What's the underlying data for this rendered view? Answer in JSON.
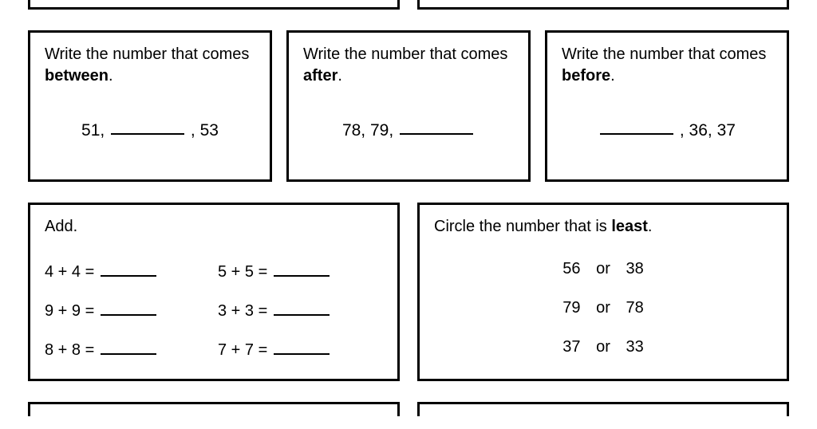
{
  "colors": {
    "border": "#000000",
    "bg": "#ffffff",
    "text": "#000000"
  },
  "font": {
    "family": "Comic Sans MS",
    "size_pt": 15
  },
  "top_row": [
    {
      "prompt_prefix": "Write the number that comes ",
      "bold_word": "between",
      "suffix": ".",
      "sequence": {
        "before": "51,",
        "after": ", 53"
      }
    },
    {
      "prompt_prefix": "Write the number that comes ",
      "bold_word": "after",
      "suffix": ".",
      "sequence": {
        "before": "78, 79,",
        "after": ""
      }
    },
    {
      "prompt_prefix": "Write the number that comes ",
      "bold_word": "before",
      "suffix": ".",
      "sequence": {
        "before": "",
        "after": ", 36, 37"
      }
    }
  ],
  "add_box": {
    "title": "Add.",
    "problems": [
      "4 + 4 =",
      "5 + 5 =",
      "9 + 9 =",
      "3 + 3 =",
      "8 + 8 =",
      "7 + 7 ="
    ]
  },
  "circle_box": {
    "prompt_prefix": "Circle the number that is ",
    "bold_word": "least",
    "suffix": ".",
    "or_label": "or",
    "pairs": [
      {
        "a": "56",
        "b": "38"
      },
      {
        "a": "79",
        "b": "78"
      },
      {
        "a": "37",
        "b": "33"
      }
    ]
  }
}
